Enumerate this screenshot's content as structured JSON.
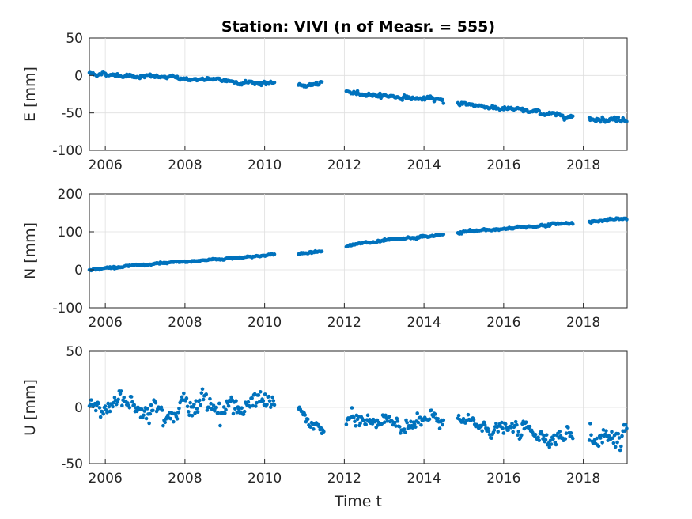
{
  "figure": {
    "title": "Station: VIVI (n of Measr. = 555)",
    "xlabel": "Time t",
    "marker_color": "#0072BD"
  },
  "chart_data": [
    {
      "type": "scatter",
      "id": "east",
      "title": "Station: VIVI (n of Measr. = 555)",
      "xlabel": "",
      "ylabel": "E [mm]",
      "xlim": [
        2005.6,
        2019.1
      ],
      "ylim": [
        -100,
        50
      ],
      "xticks": [
        2006,
        2008,
        2010,
        2012,
        2014,
        2016,
        2018
      ],
      "yticks": [
        -100,
        -50,
        0,
        50
      ],
      "grid": true,
      "color": "#0072BD",
      "series": [
        {
          "segments": [
            {
              "x_start": 2005.6,
              "x_end": 2010.25,
              "y_start": 3,
              "y_end": -11,
              "noise": 1.5
            },
            {
              "x_start": 2010.85,
              "x_end": 2011.45,
              "y_start": -13,
              "y_end": -12,
              "noise": 1.5
            },
            {
              "x_start": 2012.05,
              "x_end": 2014.5,
              "y_start": -22,
              "y_end": -34,
              "noise": 1.6
            },
            {
              "x_start": 2014.85,
              "x_end": 2017.75,
              "y_start": -37,
              "y_end": -55,
              "noise": 1.6
            },
            {
              "x_start": 2018.15,
              "x_end": 2019.1,
              "y_start": -56,
              "y_end": -59,
              "noise": 2.2
            }
          ]
        }
      ]
    },
    {
      "type": "scatter",
      "id": "north",
      "title": "",
      "xlabel": "",
      "ylabel": "N [mm]",
      "xlim": [
        2005.6,
        2019.1
      ],
      "ylim": [
        -100,
        200
      ],
      "xticks": [
        2006,
        2008,
        2010,
        2012,
        2014,
        2016,
        2018
      ],
      "yticks": [
        -100,
        0,
        100,
        200
      ],
      "grid": true,
      "color": "#0072BD",
      "series": [
        {
          "segments": [
            {
              "x_start": 2005.6,
              "x_end": 2010.25,
              "y_start": 1,
              "y_end": 40,
              "noise": 1.5
            },
            {
              "x_start": 2010.85,
              "x_end": 2011.45,
              "y_start": 42,
              "y_end": 51,
              "noise": 1.5
            },
            {
              "x_start": 2012.05,
              "x_end": 2014.5,
              "y_start": 64,
              "y_end": 92,
              "noise": 1.8
            },
            {
              "x_start": 2014.85,
              "x_end": 2017.75,
              "y_start": 98,
              "y_end": 124,
              "noise": 2.0
            },
            {
              "x_start": 2018.15,
              "x_end": 2019.1,
              "y_start": 127,
              "y_end": 134,
              "noise": 1.8
            }
          ]
        }
      ]
    },
    {
      "type": "scatter",
      "id": "up",
      "title": "",
      "xlabel": "Time t",
      "ylabel": "U [mm]",
      "xlim": [
        2005.6,
        2019.1
      ],
      "ylim": [
        -50,
        50
      ],
      "xticks": [
        2006,
        2008,
        2010,
        2012,
        2014,
        2016,
        2018
      ],
      "yticks": [
        -50,
        0,
        50
      ],
      "grid": true,
      "color": "#0072BD",
      "series": [
        {
          "segments": [
            {
              "x_start": 2005.6,
              "x_end": 2010.25,
              "y_start": 3,
              "y_end": 2,
              "noise": 5.5
            },
            {
              "x_start": 2010.85,
              "x_end": 2011.5,
              "y_start": -4,
              "y_end": -22,
              "noise": 3.0
            },
            {
              "x_start": 2012.05,
              "x_end": 2014.5,
              "y_start": -13,
              "y_end": -12,
              "noise": 4.0
            },
            {
              "x_start": 2014.85,
              "x_end": 2017.75,
              "y_start": -14,
              "y_end": -27,
              "noise": 4.0
            },
            {
              "x_start": 2018.15,
              "x_end": 2019.1,
              "y_start": -25,
              "y_end": -27,
              "noise": 7.0
            }
          ]
        }
      ]
    }
  ]
}
